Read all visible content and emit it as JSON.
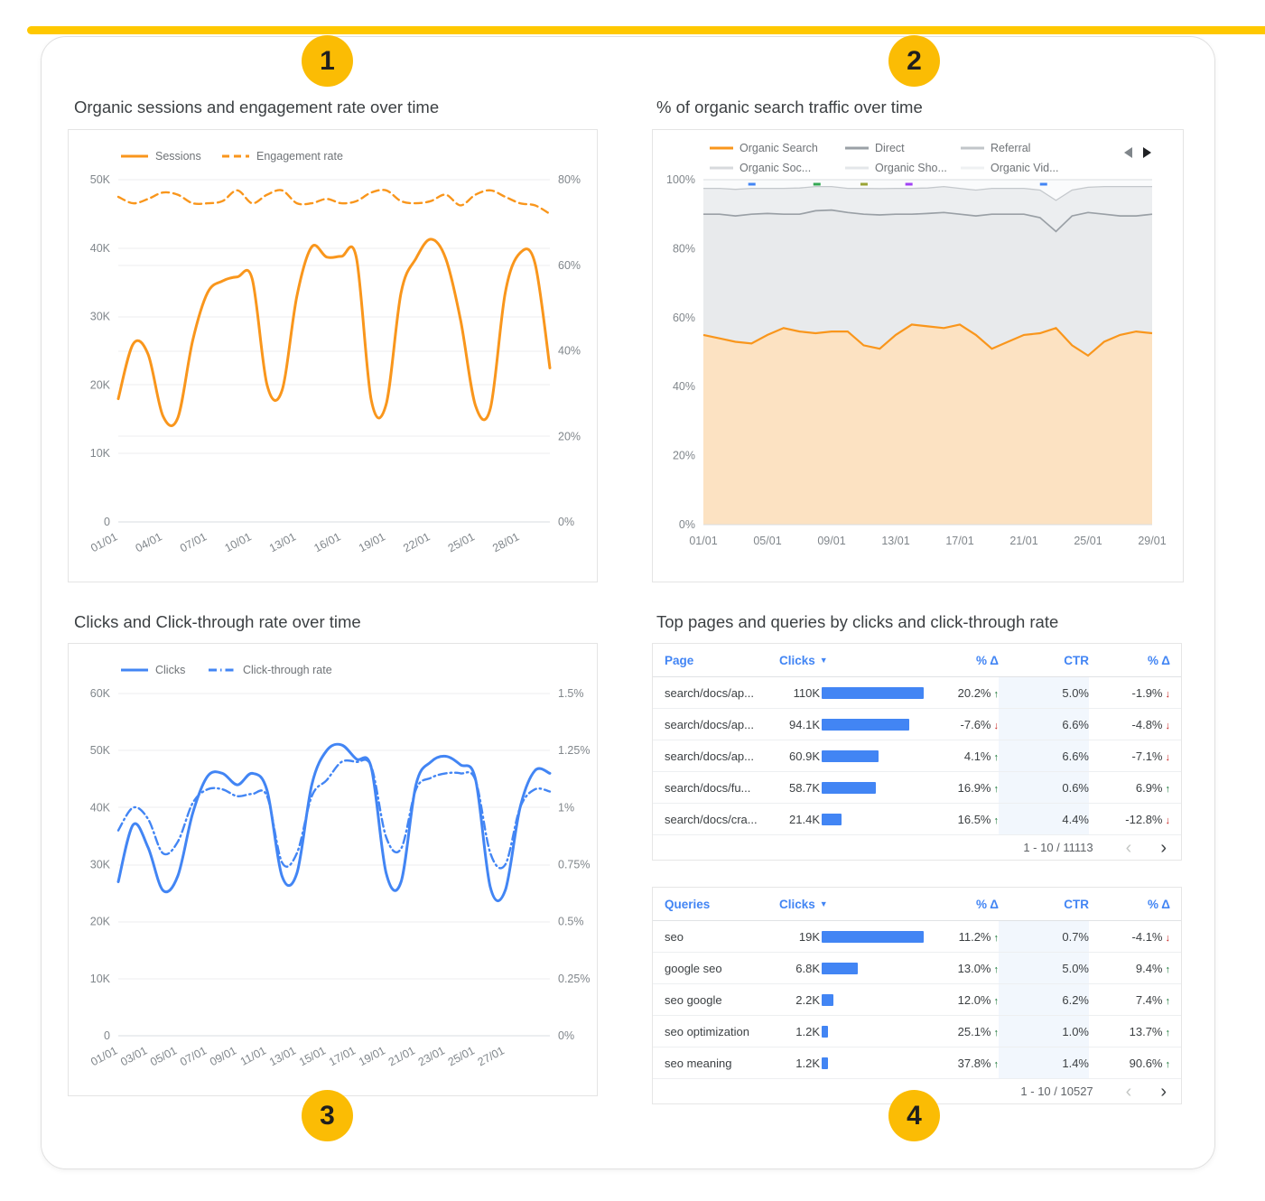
{
  "badges": [
    "1",
    "2",
    "3",
    "4"
  ],
  "theme": {
    "top_bar": "#FFC800",
    "badge": "#FBBC04",
    "blue": "#4285F4",
    "orange": "#F9961C",
    "green": "#137333",
    "red": "#C5221F"
  },
  "icons": {
    "sort_desc": "▼",
    "up_arrow": "↑",
    "down_arrow": "↓",
    "prev": "‹",
    "next": "›"
  },
  "chart_data": [
    {
      "type": "line",
      "title": "Organic sessions and engagement rate over time",
      "x_labels": [
        "01/01",
        "04/01",
        "07/01",
        "10/01",
        "13/01",
        "16/01",
        "19/01",
        "22/01",
        "25/01",
        "28/01"
      ],
      "label_step": 3,
      "left_axis": {
        "min": 0,
        "max": 50,
        "ticks": [
          "0",
          "10K",
          "20K",
          "30K",
          "40K",
          "50K"
        ]
      },
      "right_axis": {
        "min": 0,
        "max": 80,
        "ticks": [
          "0%",
          "20%",
          "40%",
          "60%",
          "80%"
        ]
      },
      "series": [
        {
          "name": "Sessions",
          "axis": "left",
          "dash": "none",
          "color": "#F9961C",
          "values": [
            18,
            26,
            24.5,
            15.5,
            15.2,
            26.5,
            33.5,
            35.2,
            35.8,
            35.5,
            20,
            19.2,
            33,
            40.2,
            38.7,
            38.8,
            38.6,
            17.8,
            17.2,
            33.5,
            38.5,
            41.3,
            38.5,
            29.5,
            17,
            16.6,
            33.5,
            39.3,
            37.8,
            22.5
          ]
        },
        {
          "name": "Engagement rate",
          "axis": "right",
          "dash": "8 5",
          "color": "#F9961C",
          "values": [
            76,
            74.5,
            75.5,
            77,
            76.5,
            74.5,
            74.5,
            75,
            77.5,
            74.5,
            76.5,
            77.5,
            74.5,
            74.5,
            75.5,
            74.5,
            75,
            77,
            77.5,
            75,
            74.5,
            75,
            76.5,
            74,
            76.5,
            77.5,
            76,
            74.5,
            74,
            72
          ]
        }
      ]
    },
    {
      "type": "stacked_area_100",
      "title": "% of organic search traffic over time",
      "x_labels": [
        "01/01",
        "05/01",
        "09/01",
        "13/01",
        "17/01",
        "21/01",
        "25/01",
        "29/01"
      ],
      "label_step": 4,
      "y_ticks": [
        "0%",
        "20%",
        "40%",
        "60%",
        "80%",
        "100%"
      ],
      "top_fill": "#FAFBFC",
      "legend": [
        {
          "name": "Organic Search",
          "color": "#F9961C"
        },
        {
          "name": "Direct",
          "color": "#9AA0A6"
        },
        {
          "name": "Referral",
          "color": "#C1C5C9"
        },
        {
          "name": "Organic Soc...",
          "color": "#D7DADD"
        },
        {
          "name": "Organic Sho...",
          "color": "#E4E7EA"
        },
        {
          "name": "Organic Vid...",
          "color": "#EFF1F3"
        }
      ],
      "boundaries": [
        {
          "name": "Organic Search",
          "color": "#F9961C",
          "fill": "#FCE2C2",
          "width": 2.2,
          "values": [
            55,
            54,
            53,
            52.5,
            55,
            57,
            56,
            55.5,
            56,
            56,
            52,
            51,
            55,
            58,
            57.5,
            57,
            58,
            55,
            51,
            53,
            55,
            55.5,
            57,
            52,
            49,
            53,
            55,
            56,
            55.5
          ]
        },
        {
          "name": "Direct",
          "color": "#9AA0A6",
          "fill": "#E8EAEC",
          "width": 1.7,
          "values": [
            90,
            90,
            89.5,
            90,
            90.2,
            90,
            90,
            91,
            91.2,
            90.5,
            90,
            89.8,
            90,
            90,
            90.2,
            90.5,
            90,
            89.5,
            90,
            90,
            90,
            89,
            85,
            89.5,
            90.5,
            90,
            89.5,
            89.5,
            90
          ]
        },
        {
          "name": "Referral",
          "color": "#C4C8CC",
          "fill": "#ECEEF0",
          "width": 1.3,
          "values": [
            97.5,
            97.5,
            97.2,
            97.5,
            97.5,
            97.5,
            97.6,
            98,
            98,
            97.5,
            97.5,
            97.4,
            97.5,
            97.5,
            97.6,
            98,
            97.5,
            97,
            97.5,
            97.5,
            97.5,
            97,
            94,
            97,
            97.8,
            98,
            98,
            98,
            98
          ]
        }
      ],
      "top_marks": [
        {
          "pos": 0.1,
          "color": "#4285F4"
        },
        {
          "pos": 0.245,
          "color": "#34A853"
        },
        {
          "pos": 0.35,
          "color": "#9AA435"
        },
        {
          "pos": 0.45,
          "color": "#A142F4"
        },
        {
          "pos": 0.75,
          "color": "#4285F4"
        }
      ]
    },
    {
      "type": "line",
      "title": "Clicks and Click-through rate over time",
      "x_labels": [
        "01/01",
        "03/01",
        "05/01",
        "07/01",
        "09/01",
        "11/01",
        "13/01",
        "15/01",
        "17/01",
        "19/01",
        "21/01",
        "23/01",
        "25/01",
        "27/01"
      ],
      "label_step": 2,
      "left_axis": {
        "min": 0,
        "max": 60,
        "ticks": [
          "0",
          "10K",
          "20K",
          "30K",
          "40K",
          "50K",
          "60K"
        ]
      },
      "right_axis": {
        "min": 0,
        "max": 1.5,
        "ticks": [
          "0%",
          "0.25%",
          "0.5%",
          "0.75%",
          "1%",
          "1.25%",
          "1.5%"
        ]
      },
      "series": [
        {
          "name": "Clicks",
          "axis": "left",
          "dash": "none",
          "color": "#4285F4",
          "values": [
            27,
            37,
            33,
            25.5,
            28,
            39,
            45.5,
            46,
            44,
            46,
            43,
            28,
            28.5,
            44,
            50,
            51,
            48.5,
            47,
            28.5,
            27,
            44,
            48,
            49,
            47.5,
            45,
            26,
            25.5,
            40,
            46.5,
            46
          ]
        },
        {
          "name": "Click-through rate",
          "axis": "right",
          "dash": "9 4 1.5 4",
          "color": "#4285F4",
          "values": [
            0.9,
            1.0,
            0.95,
            0.8,
            0.85,
            1.02,
            1.08,
            1.08,
            1.05,
            1.06,
            1.05,
            0.76,
            0.8,
            1.05,
            1.12,
            1.2,
            1.2,
            1.18,
            0.87,
            0.82,
            1.08,
            1.13,
            1.15,
            1.15,
            1.12,
            0.8,
            0.75,
            1.0,
            1.08,
            1.07
          ]
        }
      ]
    },
    {
      "type": "table",
      "title": "Top pages and queries by clicks and click-through rate",
      "header": {
        "label": "Page",
        "clicks": "Clicks",
        "delta": "% Δ",
        "ctr": "CTR",
        "delta2": "% Δ"
      },
      "rows": [
        {
          "label": "search/docs/ap...",
          "clicks": "110K",
          "clicks_value": 110,
          "delta1": "20.2%",
          "delta1_dir": "up",
          "ctr": "5.0%",
          "delta2": "-1.9%",
          "delta2_dir": "down"
        },
        {
          "label": "search/docs/ap...",
          "clicks": "94.1K",
          "clicks_value": 94.1,
          "delta1": "-7.6%",
          "delta1_dir": "down",
          "ctr": "6.6%",
          "delta2": "-4.8%",
          "delta2_dir": "down"
        },
        {
          "label": "search/docs/ap...",
          "clicks": "60.9K",
          "clicks_value": 60.9,
          "delta1": "4.1%",
          "delta1_dir": "up",
          "ctr": "6.6%",
          "delta2": "-7.1%",
          "delta2_dir": "down"
        },
        {
          "label": "search/docs/fu...",
          "clicks": "58.7K",
          "clicks_value": 58.7,
          "delta1": "16.9%",
          "delta1_dir": "up",
          "ctr": "0.6%",
          "delta2": "6.9%",
          "delta2_dir": "up"
        },
        {
          "label": "search/docs/cra...",
          "clicks": "21.4K",
          "clicks_value": 21.4,
          "delta1": "16.5%",
          "delta1_dir": "up",
          "ctr": "4.4%",
          "delta2": "-12.8%",
          "delta2_dir": "down"
        }
      ],
      "pagination": "1 - 10 / 11113"
    },
    {
      "type": "table",
      "title": "",
      "header": {
        "label": "Queries",
        "clicks": "Clicks",
        "delta": "% Δ",
        "ctr": "CTR",
        "delta2": "% Δ"
      },
      "rows": [
        {
          "label": "seo",
          "clicks": "19K",
          "clicks_value": 19,
          "delta1": "11.2%",
          "delta1_dir": "up",
          "ctr": "0.7%",
          "delta2": "-4.1%",
          "delta2_dir": "down"
        },
        {
          "label": "google seo",
          "clicks": "6.8K",
          "clicks_value": 6.8,
          "delta1": "13.0%",
          "delta1_dir": "up",
          "ctr": "5.0%",
          "delta2": "9.4%",
          "delta2_dir": "up"
        },
        {
          "label": "seo google",
          "clicks": "2.2K",
          "clicks_value": 2.2,
          "delta1": "12.0%",
          "delta1_dir": "up",
          "ctr": "6.2%",
          "delta2": "7.4%",
          "delta2_dir": "up"
        },
        {
          "label": "seo optimization",
          "clicks": "1.2K",
          "clicks_value": 1.2,
          "delta1": "25.1%",
          "delta1_dir": "up",
          "ctr": "1.0%",
          "delta2": "13.7%",
          "delta2_dir": "up"
        },
        {
          "label": "seo meaning",
          "clicks": "1.2K",
          "clicks_value": 1.2,
          "delta1": "37.8%",
          "delta1_dir": "up",
          "ctr": "1.4%",
          "delta2": "90.6%",
          "delta2_dir": "up"
        }
      ],
      "pagination": "1 - 10 / 10527"
    }
  ]
}
